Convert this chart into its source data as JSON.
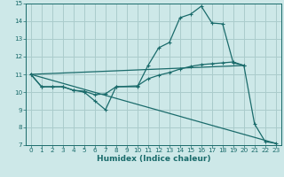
{
  "xlabel": "Humidex (Indice chaleur)",
  "bg_color": "#cde8e8",
  "grid_color": "#aacccc",
  "line_color": "#1a6b6b",
  "xlim": [
    -0.5,
    23.5
  ],
  "ylim": [
    7,
    15
  ],
  "xticks": [
    0,
    1,
    2,
    3,
    4,
    5,
    6,
    7,
    8,
    9,
    10,
    11,
    12,
    13,
    14,
    15,
    16,
    17,
    18,
    19,
    20,
    21,
    22,
    23
  ],
  "yticks": [
    7,
    8,
    9,
    10,
    11,
    12,
    13,
    14,
    15
  ],
  "curve1_x": [
    0,
    1,
    2,
    3,
    4,
    5,
    6,
    7,
    8,
    10,
    11,
    12,
    13,
    14,
    15,
    16,
    17,
    18,
    19,
    20,
    21,
    22,
    23
  ],
  "curve1_y": [
    11.0,
    10.3,
    10.3,
    10.3,
    10.1,
    10.0,
    9.5,
    9.0,
    10.3,
    10.3,
    11.5,
    12.5,
    12.8,
    14.2,
    14.4,
    14.85,
    13.9,
    13.85,
    11.65,
    11.5,
    8.2,
    7.2,
    7.1
  ],
  "curve2_x": [
    0,
    1,
    2,
    3,
    4,
    5,
    6,
    7,
    8,
    10,
    11,
    12,
    13,
    14,
    15,
    16,
    17,
    18,
    19,
    20
  ],
  "curve2_y": [
    11.0,
    10.3,
    10.3,
    10.3,
    10.1,
    10.05,
    9.85,
    9.9,
    10.3,
    10.35,
    10.75,
    10.95,
    11.1,
    11.3,
    11.45,
    11.55,
    11.6,
    11.65,
    11.7,
    11.5
  ],
  "curve3_x": [
    0,
    23
  ],
  "curve3_y": [
    11.0,
    7.1
  ],
  "curve4_x": [
    0,
    20
  ],
  "curve4_y": [
    11.0,
    11.5
  ]
}
